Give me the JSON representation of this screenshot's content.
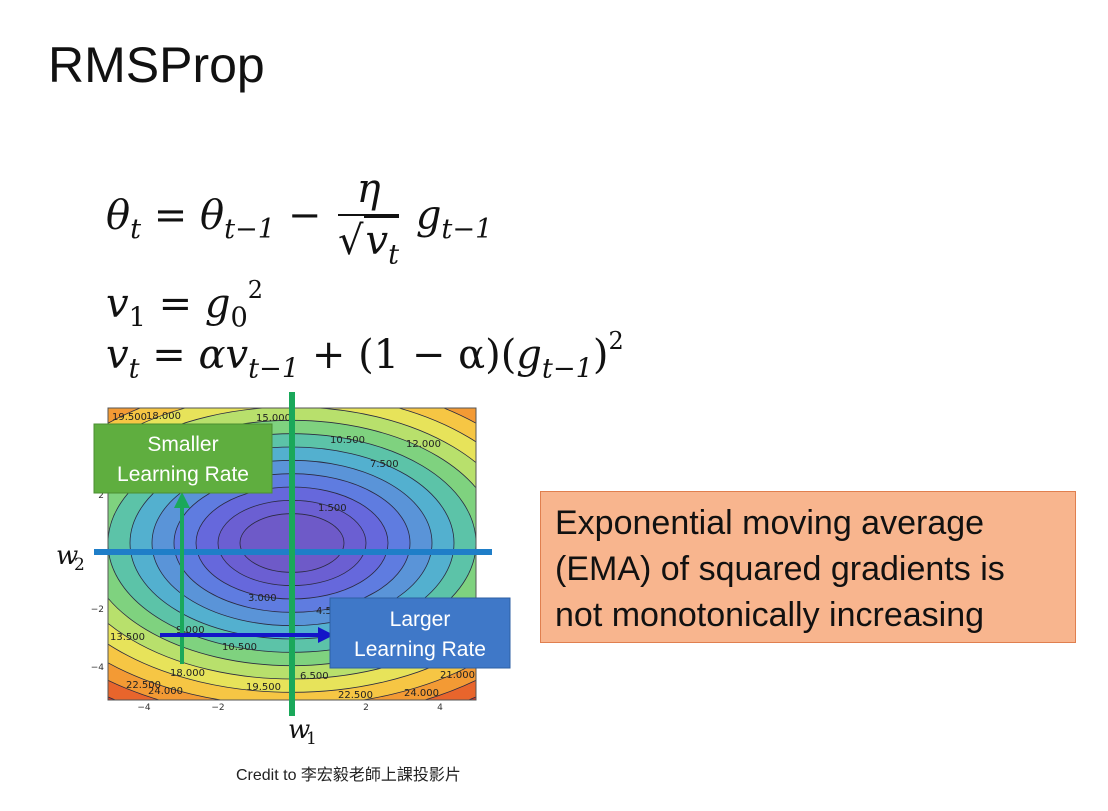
{
  "slide": {
    "title": "RMSProp",
    "credit": "Credit to 李宏毅老師上課投影片"
  },
  "equations": {
    "eq1": {
      "lhs": "θ",
      "lhs_sub": "t",
      "eq": "=",
      "prev": "θ",
      "prev_sub": "t−1",
      "minus": "−",
      "num": "η",
      "den": "v",
      "den_sub": "t",
      "g": "g",
      "g_sub": "t−1"
    },
    "eq2": {
      "v": "v",
      "v_sub": "1",
      "eq": "=",
      "g": "g",
      "g_sub": "0",
      "g_sup": "2"
    },
    "eq3": {
      "v": "v",
      "v_sub": "t",
      "eq": "=",
      "alpha_v": "αv",
      "alpha_v_sub": "t−1",
      "mid": "+ (1 − α)(",
      "g": "g",
      "g_sub": "t−1",
      "close": ")",
      "sup": "2"
    }
  },
  "callout": {
    "line1": "Exponential moving average",
    "line2": "(EMA) of squared gradients is",
    "line3": "not monotonically increasing"
  },
  "plot": {
    "w1_label": "w",
    "w1_sub": "1",
    "w2_label": "w",
    "w2_sub": "2",
    "smaller_line1": "Smaller",
    "smaller_line2": "Learning Rate",
    "larger_line1": "Larger",
    "larger_line2": "Learning Rate",
    "x_ticks": [
      "−4",
      "−2",
      "2",
      "4"
    ],
    "y_ticks": [
      "2",
      "−2",
      "−4"
    ],
    "contour_labels": [
      "19.500",
      "18.000",
      "15.000",
      "10.500",
      "12.000",
      "7.500",
      "1.500",
      "3.000",
      "4.5",
      "9.000",
      "13.500",
      "10.500",
      "18.000",
      "22.500",
      "24.000",
      "19.500",
      "6.500",
      "22.500",
      "24.000",
      "21.000"
    ],
    "colors": {
      "smaller_box": "#5fae3f",
      "larger_box": "#3f78c8",
      "green_line": "#1aa85a",
      "blue_line": "#1f7ec8",
      "dark_arrow": "#1414c8"
    }
  }
}
